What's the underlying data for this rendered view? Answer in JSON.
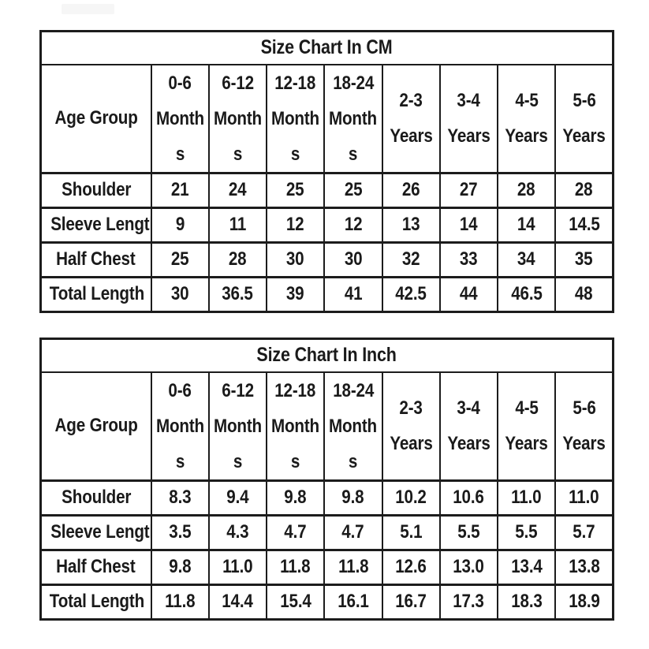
{
  "page": {
    "background": "#ffffff",
    "text_color": "#1a1a1a",
    "border_color": "#1c1c1c",
    "watermark_color": "#f6f6f6"
  },
  "chart_data": [
    {
      "type": "table",
      "title": "Size Chart In CM",
      "unit": "cm",
      "corner_header": "Age Group",
      "columns": [
        "0-6 Months",
        "6-12 Months",
        "12-18 Months",
        "18-24 Months",
        "2-3 Years",
        "3-4 Years",
        "4-5 Years",
        "5-6 Years"
      ],
      "column_header_lines": [
        [
          "0-6",
          "Month",
          "s"
        ],
        [
          "6-12",
          "Month",
          "s"
        ],
        [
          "12-18",
          "Month",
          "s"
        ],
        [
          "18-24",
          "Month",
          "s"
        ],
        [
          "2-3",
          "Years"
        ],
        [
          "3-4",
          "Years"
        ],
        [
          "4-5",
          "Years"
        ],
        [
          "5-6",
          "Years"
        ]
      ],
      "rows": [
        {
          "label": "Shoulder",
          "values": [
            "21",
            "24",
            "25",
            "25",
            "26",
            "27",
            "28",
            "28"
          ]
        },
        {
          "label": "Sleeve Length",
          "values": [
            "9",
            "11",
            "12",
            "12",
            "13",
            "14",
            "14",
            "14.5"
          ]
        },
        {
          "label": "Half Chest",
          "values": [
            "25",
            "28",
            "30",
            "30",
            "32",
            "33",
            "34",
            "35"
          ]
        },
        {
          "label": "Total Length",
          "values": [
            "30",
            "36.5",
            "39",
            "41",
            "42.5",
            "44",
            "46.5",
            "48"
          ]
        }
      ]
    },
    {
      "type": "table",
      "title": "Size Chart In Inch",
      "unit": "inch",
      "corner_header": "Age Group",
      "columns": [
        "0-6 Months",
        "6-12 Months",
        "12-18 Months",
        "18-24 Months",
        "2-3 Years",
        "3-4 Years",
        "4-5 Years",
        "5-6 Years"
      ],
      "column_header_lines": [
        [
          "0-6",
          "Month",
          "s"
        ],
        [
          "6-12",
          "Month",
          "s"
        ],
        [
          "12-18",
          "Month",
          "s"
        ],
        [
          "18-24",
          "Month",
          "s"
        ],
        [
          "2-3",
          "Years"
        ],
        [
          "3-4",
          "Years"
        ],
        [
          "4-5",
          "Years"
        ],
        [
          "5-6",
          "Years"
        ]
      ],
      "rows": [
        {
          "label": "Shoulder",
          "values": [
            "8.3",
            "9.4",
            "9.8",
            "9.8",
            "10.2",
            "10.6",
            "11.0",
            "11.0"
          ]
        },
        {
          "label": "Sleeve Length",
          "values": [
            "3.5",
            "4.3",
            "4.7",
            "4.7",
            "5.1",
            "5.5",
            "5.5",
            "5.7"
          ]
        },
        {
          "label": "Half Chest",
          "values": [
            "9.8",
            "11.0",
            "11.8",
            "11.8",
            "12.6",
            "13.0",
            "13.4",
            "13.8"
          ]
        },
        {
          "label": "Total Length",
          "values": [
            "11.8",
            "14.4",
            "15.4",
            "16.1",
            "16.7",
            "17.3",
            "18.3",
            "18.9"
          ]
        }
      ]
    }
  ]
}
